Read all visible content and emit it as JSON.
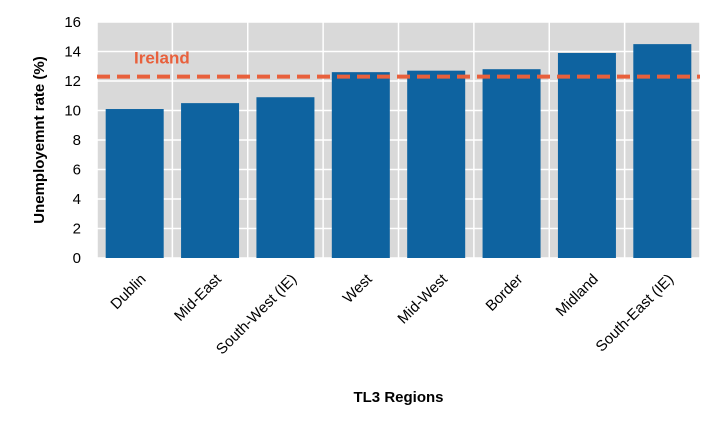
{
  "chart_data": {
    "type": "bar",
    "categories": [
      "Dublin",
      "Mid-East",
      "South-West (IE)",
      "West",
      "Mid-West",
      "Border",
      "Midland",
      "South-East (IE)"
    ],
    "values": [
      10.1,
      10.5,
      10.9,
      12.6,
      12.7,
      12.8,
      13.9,
      14.5
    ],
    "xlabel": "TL3 Regions",
    "ylabel": "Unemployemnt rate (%)",
    "ylim": [
      0,
      16
    ],
    "yticks": [
      0,
      2,
      4,
      6,
      8,
      10,
      12,
      14,
      16
    ],
    "grid": true,
    "reference_line": {
      "label": "Ireland",
      "value": 12.3
    },
    "colors": {
      "bar": "#0e63a0",
      "reference": "#e8603c",
      "plot_background": "#d9d9d9",
      "grid": "#ffffff"
    }
  }
}
